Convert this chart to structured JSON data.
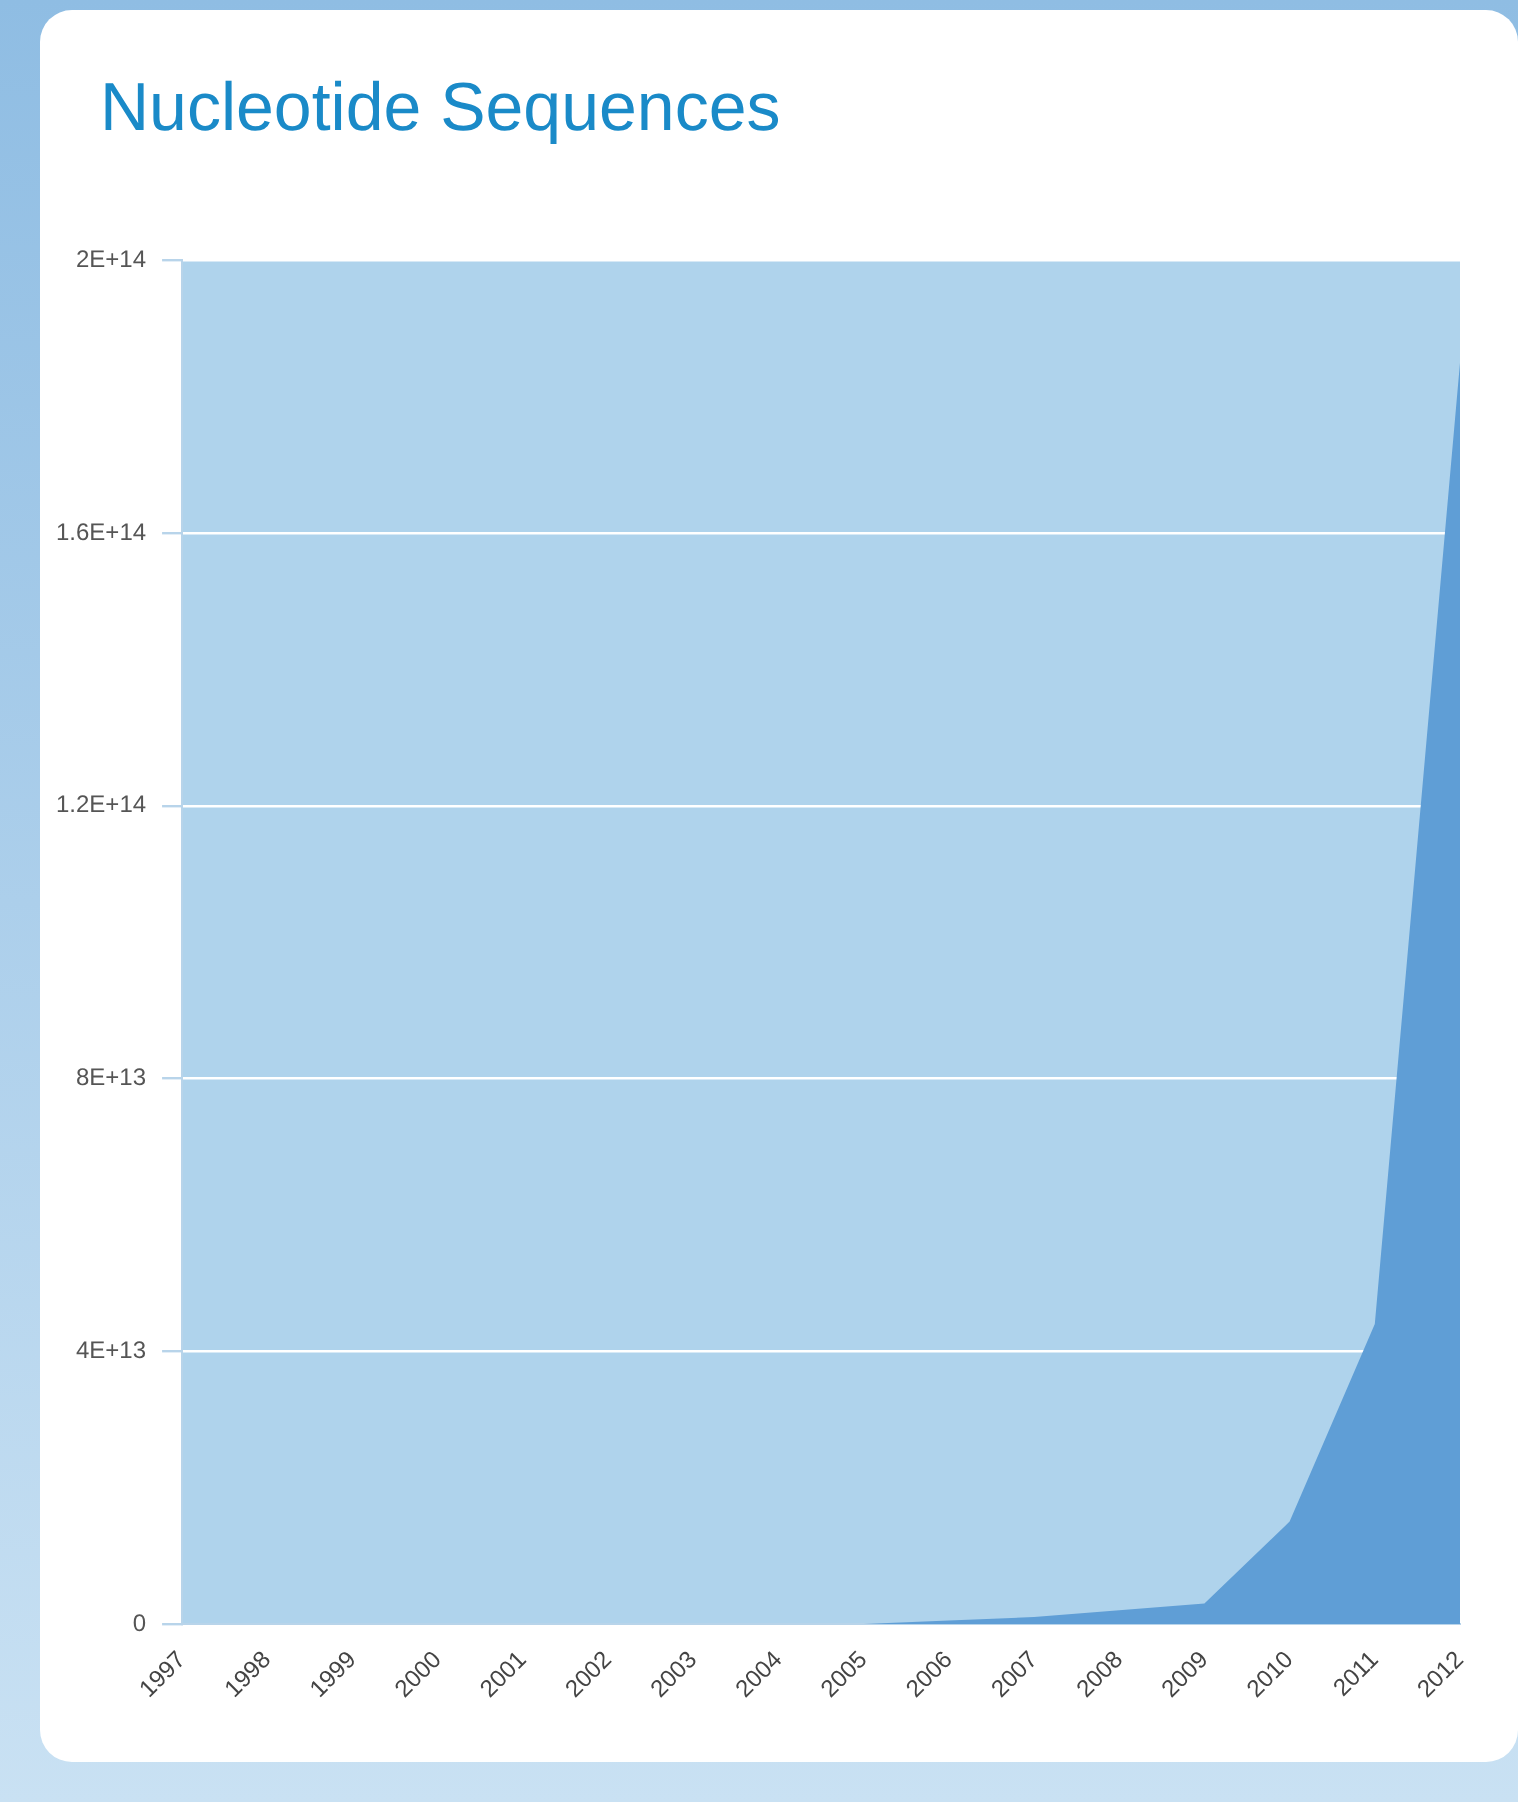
{
  "chart_data": {
    "type": "area",
    "title": "Nucleotide Sequences",
    "categories": [
      "1997",
      "1998",
      "1999",
      "2000",
      "2001",
      "2002",
      "2003",
      "2004",
      "2005",
      "2006",
      "2007",
      "2008",
      "2009",
      "2010",
      "2011",
      "2012"
    ],
    "series": [
      {
        "color": "#5f9ed6",
        "values": [
          0,
          0,
          0,
          0,
          0,
          0,
          0,
          0,
          0,
          500000000000.0,
          1000000000000.0,
          2000000000000.0,
          3000000000000.0,
          15000000000000.0,
          44000000000000.0,
          185000000000000.0
        ]
      }
    ],
    "ylim": [
      0,
      200000000000000.0
    ],
    "yticks": [
      {
        "value": 0,
        "label": "0"
      },
      {
        "value": 40000000000000.0,
        "label": "4E+13"
      },
      {
        "value": 80000000000000.0,
        "label": "8E+13"
      },
      {
        "value": 120000000000000.0,
        "label": "1.2E+14"
      },
      {
        "value": 160000000000000.0,
        "label": "1.6E+14"
      },
      {
        "value": 200000000000000.0,
        "label": "2E+14"
      }
    ],
    "grid": "y",
    "legend": false
  }
}
